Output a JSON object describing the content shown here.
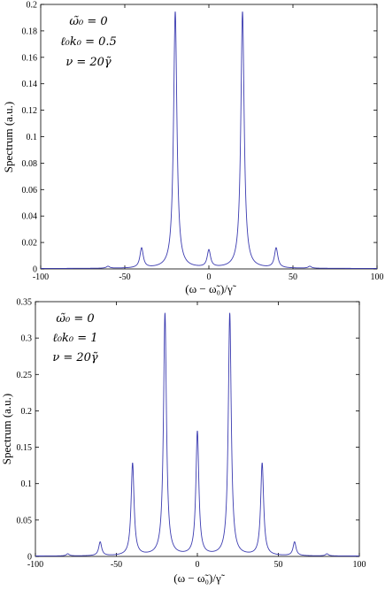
{
  "chart_data": [
    {
      "type": "line",
      "xlabel": "(ω − ω̃₀)/γ̃",
      "ylabel": "Spectrum (a.u.)",
      "xlim": [
        -100,
        100
      ],
      "ylim": [
        0,
        0.2
      ],
      "xticks": [
        "-100",
        "-50",
        "0",
        "50",
        "100"
      ],
      "yticks": [
        "0",
        "0.02",
        "0.04",
        "0.06",
        "0.08",
        "0.1",
        "0.12",
        "0.14",
        "0.16",
        "0.18",
        "0.2"
      ],
      "annotations": [
        "ω̃₀ = 0",
        "ℓ₀k₀ = 0.5",
        "ν = 20γ̃"
      ],
      "grid": false,
      "color": "#3b3bb0",
      "series": [
        {
          "peaks": [
            {
              "x": -60,
              "y": 0.0015
            },
            {
              "x": -40,
              "y": 0.015
            },
            {
              "x": -20,
              "y": 0.194
            },
            {
              "x": 0,
              "y": 0.013
            },
            {
              "x": 20,
              "y": 0.194
            },
            {
              "x": 40,
              "y": 0.015
            },
            {
              "x": 60,
              "y": 0.0015
            }
          ]
        }
      ]
    },
    {
      "type": "line",
      "xlabel": "(ω − ω̃₀)/γ̃",
      "ylabel": "Spectrum (a.u.)",
      "xlim": [
        -100,
        100
      ],
      "ylim": [
        0,
        0.35
      ],
      "xticks": [
        "-100",
        "-50",
        "0",
        "50",
        "100"
      ],
      "yticks": [
        "0",
        "0.05",
        "0.1",
        "0.15",
        "0.2",
        "0.25",
        "0.3",
        "0.35"
      ],
      "annotations": [
        "ω̃₀ = 0",
        "ℓ₀k₀ = 1",
        "ν = 20γ̃"
      ],
      "grid": false,
      "color": "#3b3bb0",
      "series": [
        {
          "peaks": [
            {
              "x": -80,
              "y": 0.003
            },
            {
              "x": -60,
              "y": 0.019
            },
            {
              "x": -40,
              "y": 0.127
            },
            {
              "x": -20,
              "y": 0.333
            },
            {
              "x": 0,
              "y": 0.17
            },
            {
              "x": 20,
              "y": 0.333
            },
            {
              "x": 40,
              "y": 0.127
            },
            {
              "x": 60,
              "y": 0.019
            },
            {
              "x": 80,
              "y": 0.003
            }
          ]
        }
      ]
    }
  ]
}
